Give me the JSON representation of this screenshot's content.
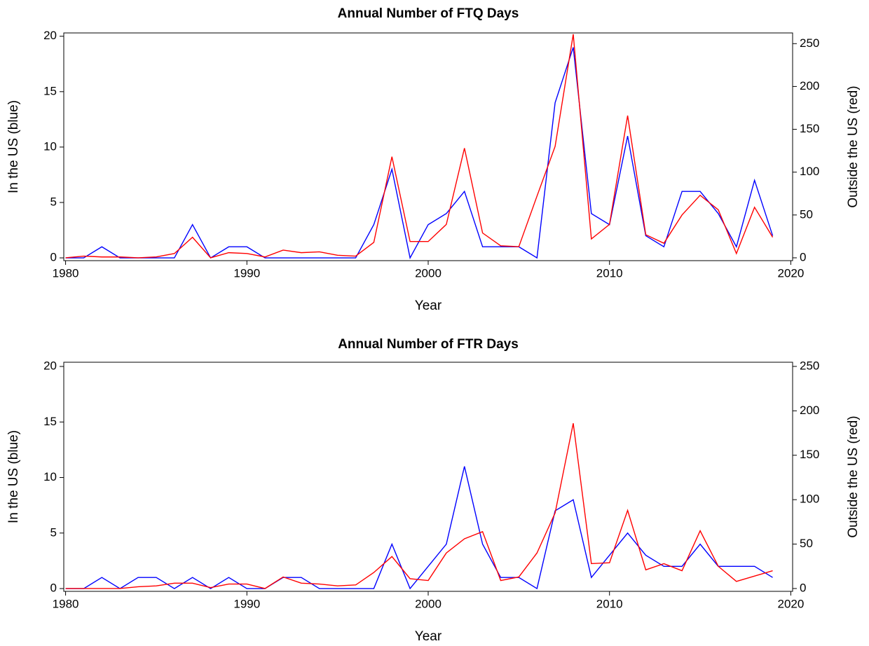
{
  "chart_data": [
    {
      "type": "line",
      "title": "Annual Number of FTQ Days",
      "xlabel": "Year",
      "ylabel": "In the US (blue)",
      "y2label": "Outside the US (red)",
      "x": [
        1980,
        1981,
        1982,
        1983,
        1984,
        1985,
        1986,
        1987,
        1988,
        1989,
        1990,
        1991,
        1992,
        1993,
        1994,
        1995,
        1996,
        1997,
        1998,
        1999,
        2000,
        2001,
        2002,
        2003,
        2004,
        2005,
        2006,
        2007,
        2008,
        2009,
        2010,
        2011,
        2012,
        2013,
        2014,
        2015,
        2016,
        2017,
        2018,
        2019
      ],
      "xlim": [
        1979.9,
        2020.1
      ],
      "xticks": [
        1980,
        1990,
        2000,
        2010,
        2020
      ],
      "ylim": [
        -0.25,
        20.3
      ],
      "yticks": [
        0,
        5,
        10,
        15,
        20
      ],
      "y2lim": [
        -3.3,
        262.5
      ],
      "y2ticks": [
        0,
        50,
        100,
        150,
        200,
        250
      ],
      "series": [
        {
          "name": "In the US",
          "color": "#0000ff",
          "values": [
            0,
            0,
            1,
            0,
            0,
            0,
            0,
            3,
            0,
            1,
            1,
            0,
            0,
            0,
            0,
            0,
            0,
            3,
            8,
            0,
            3,
            4,
            6,
            1,
            1,
            1,
            0,
            14,
            19,
            4,
            3,
            11,
            2,
            1,
            6,
            6,
            4,
            1,
            7,
            2
          ]
        },
        {
          "name": "Outside the US",
          "color": "#ff0000",
          "axis": "y2",
          "values": [
            0,
            2,
            1,
            1,
            0,
            1,
            5,
            24,
            0,
            6,
            5,
            1,
            9,
            6,
            7,
            3,
            2,
            18,
            118,
            19,
            19,
            39,
            128,
            29,
            14,
            13,
            72,
            130,
            261,
            22,
            39,
            166,
            27,
            17,
            50,
            73,
            56,
            5,
            59,
            24
          ]
        }
      ]
    },
    {
      "type": "line",
      "title": "Annual Number of FTR Days",
      "xlabel": "Year",
      "ylabel": "In the US (blue)",
      "y2label": "Outside the US (red)",
      "x": [
        1980,
        1981,
        1982,
        1983,
        1984,
        1985,
        1986,
        1987,
        1988,
        1989,
        1990,
        1991,
        1992,
        1993,
        1994,
        1995,
        1996,
        1997,
        1998,
        1999,
        2000,
        2001,
        2002,
        2003,
        2004,
        2005,
        2006,
        2007,
        2008,
        2009,
        2010,
        2011,
        2012,
        2013,
        2014,
        2015,
        2016,
        2017,
        2018,
        2019
      ],
      "xlim": [
        1979.9,
        2020.1
      ],
      "xticks": [
        1980,
        1990,
        2000,
        2010,
        2020
      ],
      "ylim": [
        -0.25,
        20.38
      ],
      "yticks": [
        0,
        5,
        10,
        15,
        20
      ],
      "y2lim": [
        -3.2,
        254.7
      ],
      "y2ticks": [
        0,
        50,
        100,
        150,
        200,
        250
      ],
      "series": [
        {
          "name": "In the US",
          "color": "#0000ff",
          "values": [
            0,
            0,
            1,
            0,
            1,
            1,
            0,
            1,
            0,
            1,
            0,
            0,
            1,
            1,
            0,
            0,
            0,
            0,
            4,
            0,
            2,
            4,
            11,
            4,
            1,
            1,
            0,
            7,
            8,
            1,
            3,
            5,
            3,
            2,
            2,
            4,
            2,
            2,
            2,
            1
          ]
        },
        {
          "name": "Outside the US",
          "color": "#ff0000",
          "axis": "y2",
          "values": [
            0,
            0,
            0,
            0,
            2,
            3,
            6,
            6,
            1,
            5,
            5,
            0,
            13,
            6,
            5,
            3,
            4,
            18,
            36,
            11,
            9,
            40,
            56,
            64,
            9,
            13,
            40,
            85,
            186,
            28,
            29,
            88,
            21,
            28,
            20,
            65,
            25,
            8,
            14,
            20
          ]
        }
      ]
    }
  ]
}
